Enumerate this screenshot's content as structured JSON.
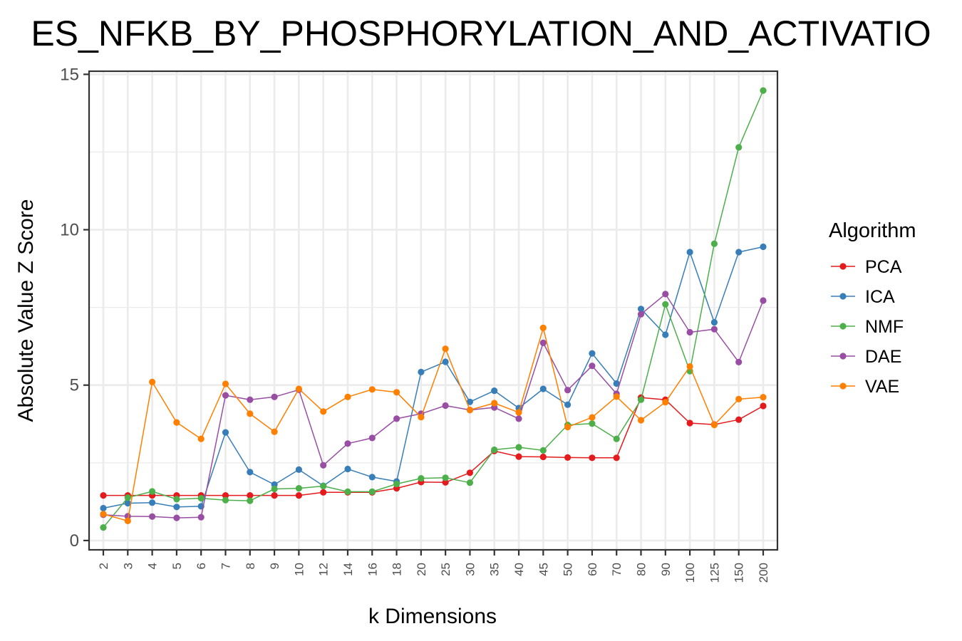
{
  "chart_data": {
    "type": "line",
    "title": "ES_NFKB_BY_PHOSPHORYLATION_AND_ACTIVATIO",
    "xlabel": "k Dimensions",
    "ylabel": "Absolute Value Z Score",
    "categories": [
      "2",
      "3",
      "4",
      "5",
      "6",
      "7",
      "8",
      "9",
      "10",
      "12",
      "14",
      "16",
      "18",
      "20",
      "25",
      "30",
      "35",
      "40",
      "45",
      "50",
      "60",
      "70",
      "80",
      "90",
      "100",
      "125",
      "150",
      "200"
    ],
    "ylim": [
      -0.3,
      15.1
    ],
    "yticks": [
      0,
      5,
      10,
      15
    ],
    "grid": true,
    "legend_title": "Algorithm",
    "legend_position": "right",
    "series": [
      {
        "name": "PCA",
        "color": "#E41A1C",
        "values": [
          1.45,
          1.45,
          1.45,
          1.45,
          1.45,
          1.45,
          1.45,
          1.45,
          1.45,
          1.55,
          1.55,
          1.55,
          1.68,
          1.88,
          1.87,
          2.18,
          2.88,
          2.7,
          2.69,
          2.67,
          2.66,
          2.66,
          4.6,
          4.53,
          3.78,
          3.73,
          3.89,
          4.33
        ]
      },
      {
        "name": "ICA",
        "color": "#377EB8",
        "values": [
          1.04,
          1.2,
          1.22,
          1.08,
          1.1,
          3.48,
          2.2,
          1.8,
          2.28,
          1.76,
          2.3,
          2.04,
          1.9,
          5.42,
          5.75,
          4.46,
          4.82,
          4.26,
          4.88,
          4.37,
          6.02,
          5.05,
          7.45,
          6.62,
          9.28,
          7.02,
          9.28,
          9.45
        ]
      },
      {
        "name": "NMF",
        "color": "#4DAF4A",
        "values": [
          0.42,
          1.38,
          1.58,
          1.33,
          1.36,
          1.3,
          1.28,
          1.66,
          1.68,
          1.75,
          1.57,
          1.57,
          1.82,
          2.0,
          2.02,
          1.86,
          2.92,
          3.0,
          2.9,
          3.72,
          3.76,
          3.27,
          4.53,
          7.6,
          5.45,
          9.55,
          12.65,
          14.48
        ]
      },
      {
        "name": "DAE",
        "color": "#984EA3",
        "values": [
          0.83,
          0.78,
          0.77,
          0.73,
          0.75,
          4.67,
          4.53,
          4.62,
          4.85,
          2.42,
          3.12,
          3.3,
          3.92,
          4.08,
          4.34,
          4.2,
          4.28,
          3.92,
          6.36,
          4.84,
          5.62,
          4.72,
          7.28,
          7.93,
          6.7,
          6.8,
          5.74,
          7.72
        ]
      },
      {
        "name": "VAE",
        "color": "#FF7F00",
        "values": [
          0.85,
          0.63,
          5.1,
          3.8,
          3.27,
          5.04,
          4.08,
          3.5,
          4.88,
          4.15,
          4.62,
          4.86,
          4.77,
          3.97,
          6.17,
          4.2,
          4.42,
          4.12,
          6.84,
          3.65,
          3.96,
          4.63,
          3.87,
          4.45,
          5.6,
          3.72,
          4.55,
          4.61
        ]
      }
    ]
  }
}
